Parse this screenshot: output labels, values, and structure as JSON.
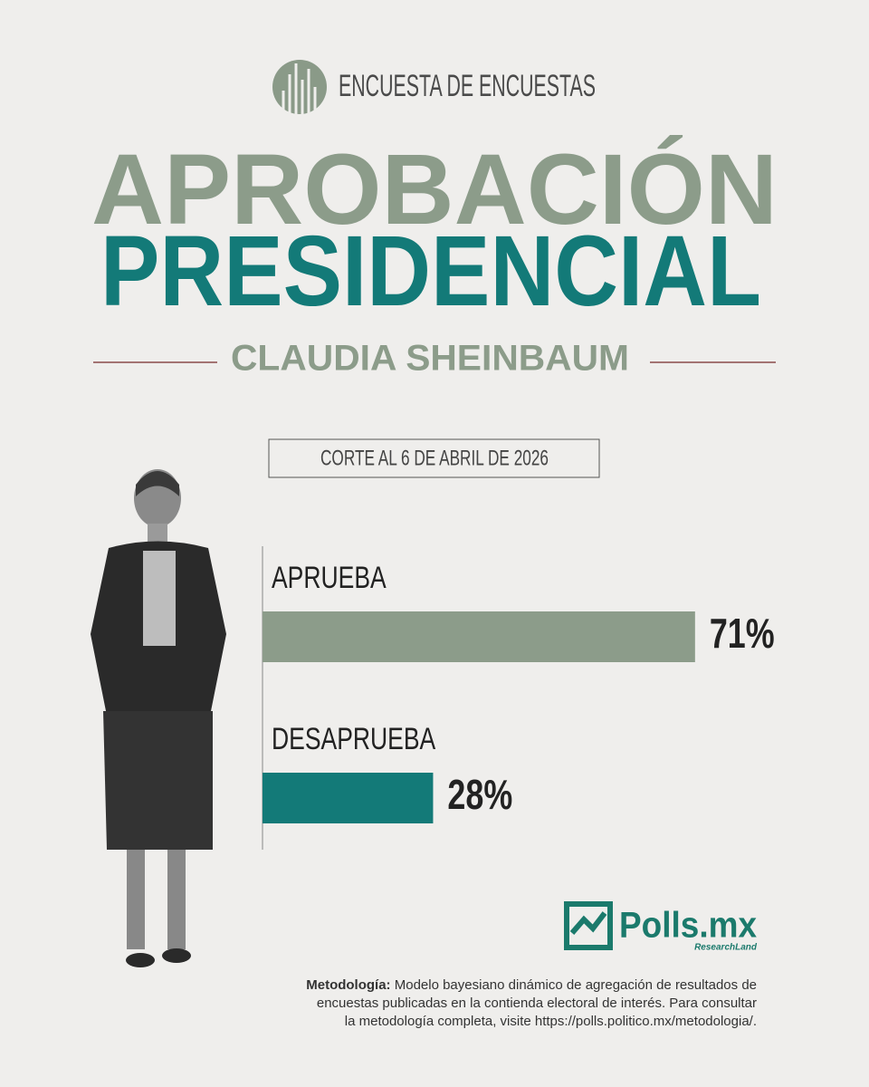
{
  "header": {
    "brand": "ENCUESTA DE ENCUESTAS"
  },
  "chart_data": {
    "type": "bar",
    "orientation": "horizontal",
    "title": [
      "APROBACIÓN",
      "PRESIDENCIAL"
    ],
    "subtitle": "CLAUDIA SHEINBAUM",
    "date": "CORTE AL 6 DE ABRIL DE 2026",
    "categories": [
      "APRUEBA",
      "DESAPRUEBA"
    ],
    "values": [
      71,
      28
    ],
    "value_labels": [
      "71%",
      "28%"
    ],
    "colors": [
      "#8c9c8a",
      "#137a78"
    ],
    "xlim": [
      0,
      100
    ]
  },
  "footer": {
    "logo": "Polls.mx",
    "logo_sub": "ResearchLand",
    "method_label": "Metodología:",
    "method_lines": [
      " Modelo bayesiano dinámico de agregación de resultados de",
      "encuestas publicadas en la contienda electoral de interés. Para consultar",
      "la metodología completa, visite https://polls.politico.mx/metodologia/."
    ]
  }
}
